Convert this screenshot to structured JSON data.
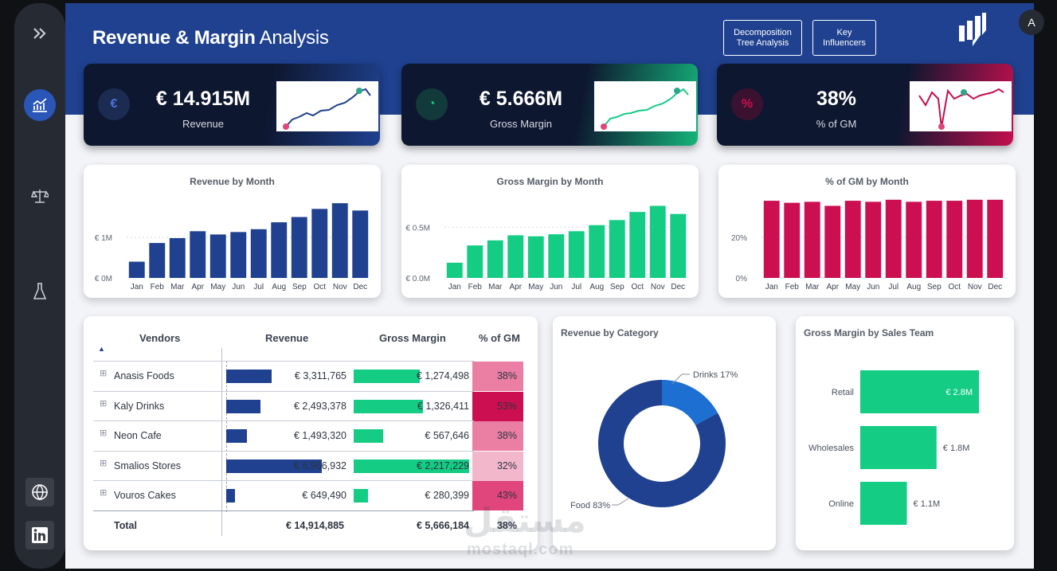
{
  "header": {
    "title_bold": "Revenue & Margin",
    "title_light": "Analysis",
    "btn_decomp_line1": "Decomposition",
    "btn_decomp_line2": "Tree Analysis",
    "btn_key_line1": "Key",
    "btn_key_line2": "Influencers"
  },
  "sidebar": {
    "items": [
      {
        "icon": "expand-chevrons-icon"
      },
      {
        "icon": "line-chart-icon",
        "active": true
      },
      {
        "icon": "scales-icon"
      },
      {
        "icon": "flask-icon"
      },
      {
        "icon": "globe-icon"
      },
      {
        "icon": "linkedin-icon"
      }
    ]
  },
  "kpis": [
    {
      "value": "€ 14.915M",
      "label": "Revenue",
      "icon": "money-bag-icon",
      "accent": "#2a56b8"
    },
    {
      "value": "€ 5.666M",
      "label": "Gross Margin",
      "icon": "pie-icon",
      "accent": "#14cc84"
    },
    {
      "value": "38%",
      "label": "% of GM",
      "icon": "percent-icon",
      "accent": "#cc0f50"
    }
  ],
  "charts": {
    "revenue_by_month": {
      "title": "Revenue by Month",
      "y_ticks": [
        "€ 0M",
        "€ 1M"
      ]
    },
    "gm_by_month": {
      "title": "Gross Margin by Month",
      "y_ticks": [
        "€ 0.0M",
        "€ 0.5M"
      ]
    },
    "pct_by_month": {
      "title": "% of GM by Month",
      "y_ticks": [
        "0%",
        "20%"
      ]
    },
    "rev_by_category": {
      "title": "Revenue by Category"
    },
    "gm_by_team": {
      "title": "Gross Margin by Sales Team"
    }
  },
  "chart_data": [
    {
      "type": "bar",
      "title": "Revenue by Month",
      "categories": [
        "Jan",
        "Feb",
        "Mar",
        "Apr",
        "May",
        "Jun",
        "Jul",
        "Aug",
        "Sep",
        "Oct",
        "Nov",
        "Dec"
      ],
      "values": [
        0.4,
        0.86,
        0.98,
        1.15,
        1.07,
        1.13,
        1.2,
        1.37,
        1.5,
        1.7,
        1.84,
        1.66
      ],
      "ylim": [
        0,
        2
      ],
      "color": "#1f418f"
    },
    {
      "type": "bar",
      "title": "Gross Margin by Month",
      "categories": [
        "Jan",
        "Feb",
        "Mar",
        "Apr",
        "May",
        "Jun",
        "Jul",
        "Aug",
        "Sep",
        "Oct",
        "Nov",
        "Dec"
      ],
      "values": [
        0.15,
        0.32,
        0.37,
        0.42,
        0.41,
        0.43,
        0.46,
        0.52,
        0.57,
        0.65,
        0.71,
        0.63
      ],
      "ylim": [
        0,
        0.8
      ],
      "color": "#14cc84"
    },
    {
      "type": "bar",
      "title": "% of GM by Month",
      "categories": [
        "Jan",
        "Feb",
        "Mar",
        "Apr",
        "May",
        "Jun",
        "Jul",
        "Aug",
        "Sep",
        "Oct",
        "Nov",
        "Dec"
      ],
      "values": [
        38,
        37,
        37.5,
        35.5,
        38,
        37.5,
        38.5,
        37.5,
        38,
        38,
        38.5,
        38.5
      ],
      "ylim": [
        0,
        40
      ],
      "color": "#cc0f50"
    },
    {
      "type": "pie",
      "title": "Revenue by Category",
      "categories": [
        "Drinks",
        "Food"
      ],
      "values": [
        17,
        83
      ],
      "labels": [
        "Drinks 17%",
        "Food 83%"
      ],
      "colors": [
        "#1d6fd1",
        "#1f418f"
      ]
    },
    {
      "type": "bar",
      "title": "Gross Margin by Sales Team",
      "orientation": "horizontal",
      "categories": [
        "Retail",
        "Wholesales",
        "Online"
      ],
      "values": [
        2.8,
        1.8,
        1.1
      ],
      "labels": [
        "€ 2.8M",
        "€ 1.8M",
        "€ 1.1M"
      ],
      "color": "#14cc84"
    }
  ],
  "table": {
    "headers": [
      "Vendors",
      "Revenue",
      "Gross Margin",
      "% of GM"
    ],
    "rows": [
      {
        "vendor": "Anasis Foods",
        "revenue": "€ 3,311,765",
        "gm": "€ 1,274,498",
        "pct": "38%",
        "rev_n": 3311765,
        "gm_n": 1274498,
        "pct_n": 38
      },
      {
        "vendor": "Kaly Drinks",
        "revenue": "€ 2,493,378",
        "gm": "€ 1,326,411",
        "pct": "53%",
        "rev_n": 2493378,
        "gm_n": 1326411,
        "pct_n": 53
      },
      {
        "vendor": "Neon Cafe",
        "revenue": "€ 1,493,320",
        "gm": "€ 567,646",
        "pct": "38%",
        "rev_n": 1493320,
        "gm_n": 567646,
        "pct_n": 38
      },
      {
        "vendor": "Smalios Stores",
        "revenue": "€ 6,966,932",
        "gm": "€ 2,217,229",
        "pct": "32%",
        "rev_n": 6966932,
        "gm_n": 2217229,
        "pct_n": 32
      },
      {
        "vendor": "Vouros Cakes",
        "revenue": "€ 649,490",
        "gm": "€ 280,399",
        "pct": "43%",
        "rev_n": 649490,
        "gm_n": 280399,
        "pct_n": 43
      }
    ],
    "total": {
      "label": "Total",
      "revenue": "€ 14,914,885",
      "gm": "€ 5,666,184",
      "pct": "38%"
    }
  },
  "watermark": {
    "arabic": "مستقل",
    "latin": "mostaql.com"
  },
  "corner_button": "A"
}
